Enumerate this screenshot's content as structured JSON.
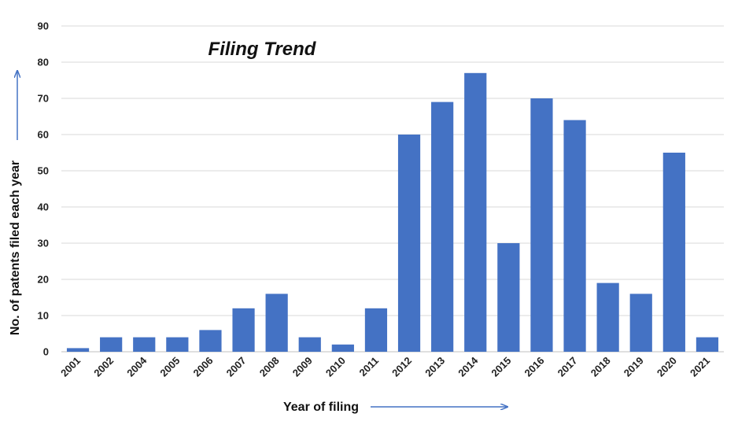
{
  "chart_data": {
    "type": "bar",
    "title": "Filing Trend",
    "xlabel": "Year of filing",
    "ylabel": "No. of patents filed each year",
    "categories": [
      "2001",
      "2002",
      "2004",
      "2005",
      "2006",
      "2007",
      "2008",
      "2009",
      "2010",
      "2011",
      "2012",
      "2013",
      "2014",
      "2015",
      "2016",
      "2017",
      "2018",
      "2019",
      "2020",
      "2021"
    ],
    "values": [
      1,
      4,
      4,
      4,
      6,
      12,
      16,
      4,
      2,
      12,
      60,
      69,
      77,
      30,
      70,
      64,
      19,
      16,
      55,
      4
    ],
    "ylim": [
      0,
      90
    ],
    "yticks": [
      0,
      10,
      20,
      30,
      40,
      50,
      60,
      70,
      80,
      90
    ],
    "grid": true,
    "legend": "none",
    "bar_color": "#4472C4",
    "arrow_color": "#4472C4"
  }
}
